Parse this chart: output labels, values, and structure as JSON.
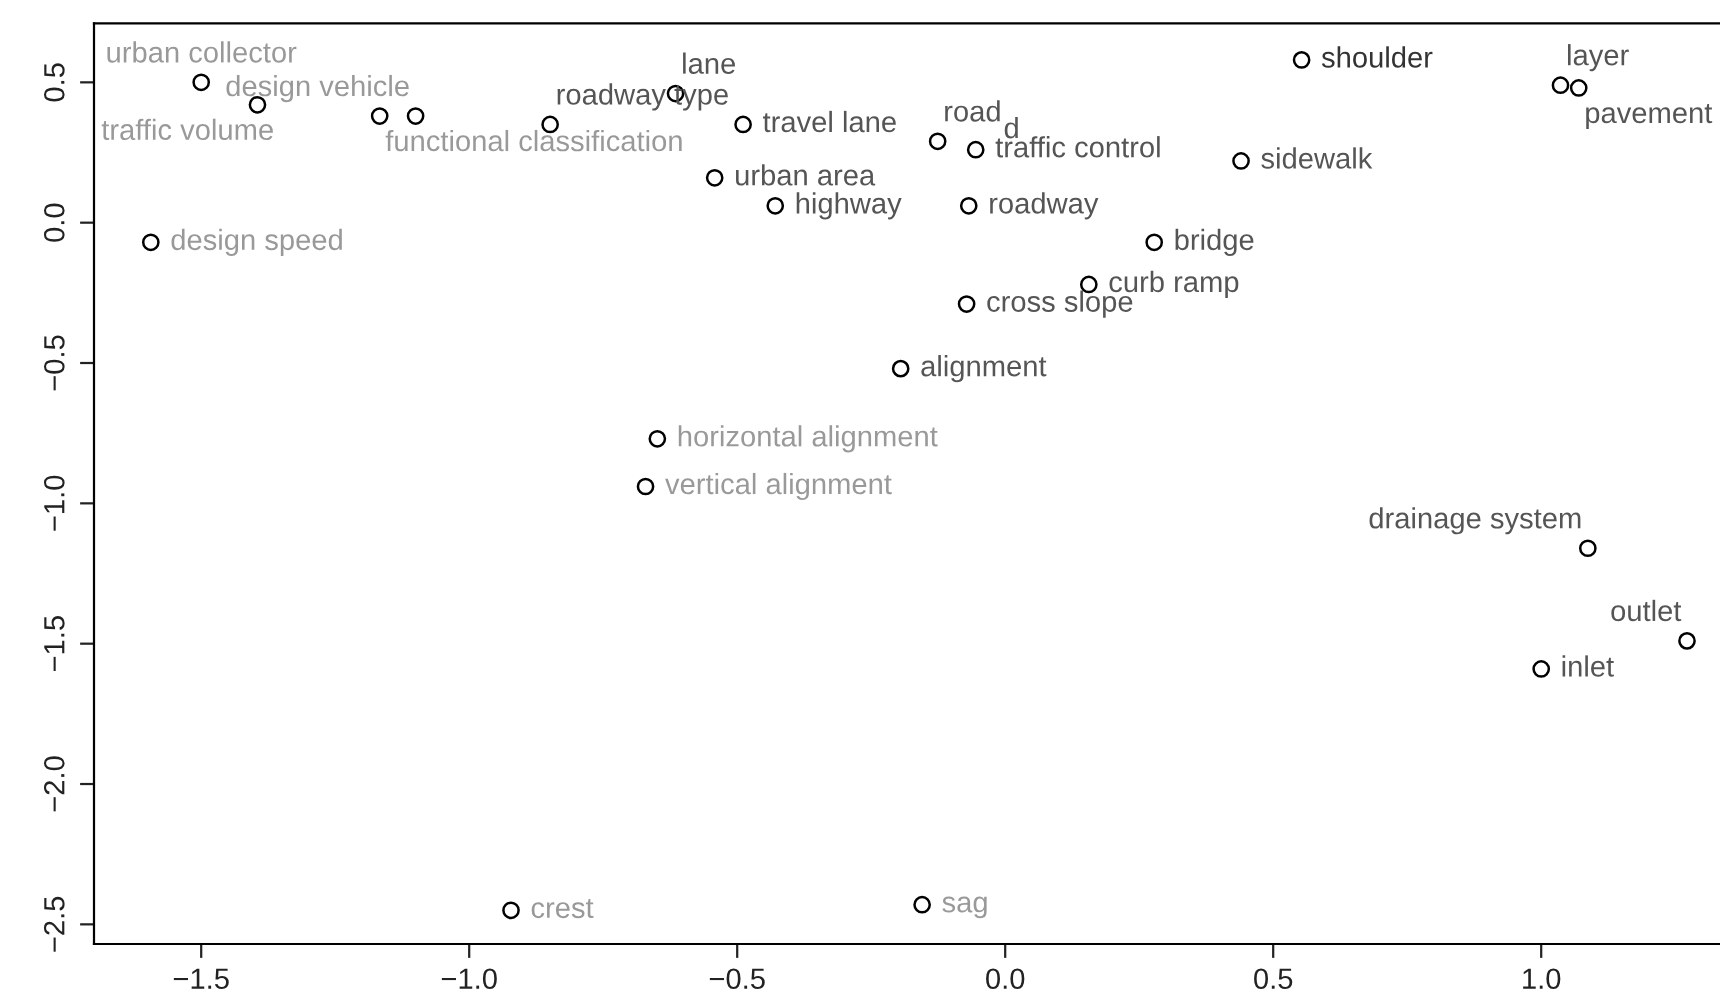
{
  "chart_data": {
    "type": "scatter",
    "x": [
      -1.5,
      -1.395,
      -1.167,
      -1.1,
      -0.849,
      -0.615,
      -0.489,
      -0.542,
      -0.429,
      -1.594,
      -0.649,
      -0.671,
      -0.126,
      -0.055,
      -0.068,
      0.278,
      0.156,
      -0.072,
      -0.195,
      0.44,
      0.553,
      1.036,
      1.07,
      1.087,
      1.272,
      1.0,
      -0.922,
      -0.155
    ],
    "series": [
      {
        "color": "#000000",
        "values": [
          0.5,
          0.42,
          0.38,
          0.38,
          0.35,
          0.46,
          0.35,
          0.16,
          0.06,
          -0.07,
          -0.77,
          -0.94,
          0.29,
          0.26,
          0.06,
          -0.07,
          -0.22,
          -0.29,
          -0.52,
          0.22,
          0.58,
          0.49,
          0.48,
          -1.16,
          -1.49,
          -1.59,
          -2.45,
          -2.43
        ]
      }
    ],
    "marker": "circle",
    "annotations": [
      {
        "text": "urban collector",
        "x": -1.5,
        "y": 0.5
      },
      {
        "text": "traffic volume",
        "x": -1.395,
        "y": 0.42
      },
      {
        "text": "functional classification",
        "x": -1.167,
        "y": 0.38
      },
      {
        "text": "design vehicle",
        "x": -1.1,
        "y": 0.38
      },
      {
        "text": "roadway type",
        "x": -0.849,
        "y": 0.35
      },
      {
        "text": "lane",
        "x": -0.615,
        "y": 0.46
      },
      {
        "text": "travel lane",
        "x": -0.489,
        "y": 0.35
      },
      {
        "text": "urban area",
        "x": -0.542,
        "y": 0.16
      },
      {
        "text": "highway",
        "x": -0.429,
        "y": 0.06
      },
      {
        "text": "design speed",
        "x": -1.594,
        "y": -0.07
      },
      {
        "text": "horizontal alignment",
        "x": -0.649,
        "y": -0.77
      },
      {
        "text": "vertical alignment",
        "x": -0.671,
        "y": -0.94
      },
      {
        "text": "road",
        "x": -0.126,
        "y": 0.29
      },
      {
        "text": "traffic control",
        "x": -0.055,
        "y": 0.26
      },
      {
        "text": "d",
        "x": -0.055,
        "y": 0.26
      },
      {
        "text": "roadway",
        "x": -0.068,
        "y": 0.06
      },
      {
        "text": "bridge",
        "x": 0.278,
        "y": -0.07
      },
      {
        "text": "curb ramp",
        "x": 0.156,
        "y": -0.22
      },
      {
        "text": "cross slope",
        "x": -0.072,
        "y": -0.29
      },
      {
        "text": "alignment",
        "x": -0.195,
        "y": -0.52
      },
      {
        "text": "sidewalk",
        "x": 0.44,
        "y": 0.22
      },
      {
        "text": "shoulder",
        "x": 0.553,
        "y": 0.58
      },
      {
        "text": "layer",
        "x": 1.036,
        "y": 0.49
      },
      {
        "text": "pavement",
        "x": 1.07,
        "y": 0.48
      },
      {
        "text": "drainage system",
        "x": 1.087,
        "y": -1.16
      },
      {
        "text": "outlet",
        "x": 1.272,
        "y": -1.49
      },
      {
        "text": "inlet",
        "x": 1.0,
        "y": -1.59
      },
      {
        "text": "crest",
        "x": -0.922,
        "y": -2.45
      },
      {
        "text": "sag",
        "x": -0.155,
        "y": -2.43
      }
    ],
    "xlim": [
      -1.7,
      1.34
    ],
    "ylim": [
      -2.57,
      0.71
    ],
    "xticks": [
      {
        "value": -1.5,
        "label": "−1.5"
      },
      {
        "value": -1.0,
        "label": "−1.0"
      },
      {
        "value": -0.5,
        "label": "−0.5"
      },
      {
        "value": 0.0,
        "label": "0.0"
      },
      {
        "value": 0.5,
        "label": "0.5"
      },
      {
        "value": 1.0,
        "label": "1.0"
      }
    ],
    "yticks": [
      {
        "value": -2.5,
        "label": "−2.5"
      },
      {
        "value": -2.0,
        "label": "−2.0"
      },
      {
        "value": -1.5,
        "label": "−1.5"
      },
      {
        "value": -1.0,
        "label": "−1.0"
      },
      {
        "value": -0.5,
        "label": "−0.5"
      },
      {
        "value": 0.0,
        "label": "0.0"
      },
      {
        "value": 0.5,
        "label": "0.5"
      }
    ],
    "grid": false,
    "legend": false
  }
}
